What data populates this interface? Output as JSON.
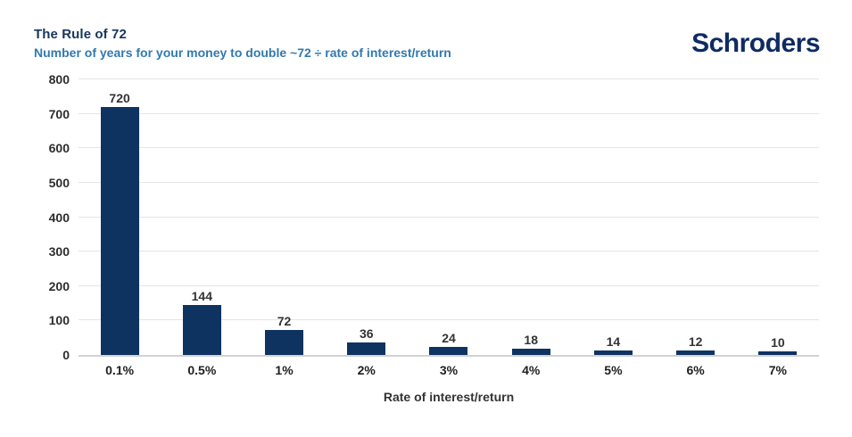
{
  "header": {
    "title": "The Rule of 72",
    "subtitle": "Number of years for your money to double ~72 ÷ rate of interest/return",
    "logo": "Schroders"
  },
  "chart_data": {
    "type": "bar",
    "title": "The Rule of 72",
    "subtitle": "Number of years for your money to double ~72 ÷ rate of interest/return",
    "categories": [
      "0.1%",
      "0.5%",
      "1%",
      "2%",
      "3%",
      "4%",
      "5%",
      "6%",
      "7%"
    ],
    "values": [
      720,
      144,
      72,
      36,
      24,
      18,
      14,
      12,
      10
    ],
    "xlabel": "Rate of interest/return",
    "ylabel": "",
    "ylim": [
      0,
      800
    ],
    "yticks": [
      0,
      100,
      200,
      300,
      400,
      500,
      600,
      700,
      800
    ],
    "grid": true,
    "legend": "none",
    "data_labels": true
  },
  "colors": {
    "bar": "#0e3361",
    "grid": "#e5e5e5",
    "axis": "#d2d2d2",
    "title": "#17365d",
    "subtitle": "#3379ae",
    "logo": "#0e2b63",
    "tick_label": "#2d2d2d"
  }
}
